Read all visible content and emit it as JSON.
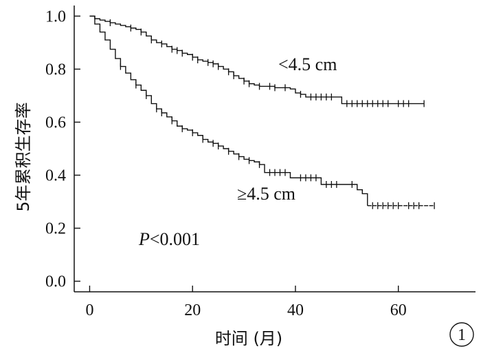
{
  "chart_data": {
    "type": "line",
    "subtype": "kaplan-meier",
    "title": "",
    "xlabel": "时间 (月)",
    "ylabel": "5年累积生存率",
    "xlim": [
      -3,
      75
    ],
    "ylim": [
      -0.04,
      1.04
    ],
    "xticks": [
      0,
      20,
      40,
      60
    ],
    "yticks": [
      0.0,
      0.2,
      0.4,
      0.6,
      0.8,
      1.0
    ],
    "xtick_labels": [
      "0",
      "20",
      "40",
      "60"
    ],
    "ytick_labels": [
      "0.0",
      "0.2",
      "0.4",
      "0.6",
      "0.8",
      "1.0"
    ],
    "grid": false,
    "legend": "none",
    "annotation": {
      "prefix": "P",
      "rest": "<0.001"
    },
    "figure_label": "1",
    "series": [
      {
        "name": "<4.5 cm",
        "dashed": false,
        "x": [
          0,
          1,
          2,
          3,
          4,
          5,
          6,
          7,
          8,
          9,
          10,
          11,
          12,
          13,
          14,
          15,
          16,
          17,
          18,
          19,
          20,
          21,
          22,
          23,
          24,
          25,
          26,
          27,
          28,
          29,
          30,
          31,
          32,
          33,
          34,
          35,
          36,
          37,
          38,
          39,
          40,
          41,
          42,
          43,
          44,
          45,
          46,
          47,
          48,
          49,
          50,
          51,
          52,
          53,
          54,
          55,
          56,
          57,
          58,
          59,
          60,
          61,
          62,
          63,
          64,
          65
        ],
        "y": [
          1.0,
          0.99,
          0.985,
          0.98,
          0.975,
          0.97,
          0.965,
          0.96,
          0.955,
          0.95,
          0.94,
          0.925,
          0.91,
          0.9,
          0.895,
          0.885,
          0.875,
          0.87,
          0.86,
          0.855,
          0.845,
          0.835,
          0.83,
          0.825,
          0.82,
          0.81,
          0.8,
          0.79,
          0.775,
          0.765,
          0.755,
          0.745,
          0.74,
          0.735,
          0.735,
          0.735,
          0.73,
          0.73,
          0.73,
          0.725,
          0.71,
          0.705,
          0.695,
          0.695,
          0.695,
          0.695,
          0.695,
          0.695,
          0.695,
          0.67,
          0.67,
          0.67,
          0.67,
          0.67,
          0.67,
          0.67,
          0.67,
          0.67,
          0.67,
          0.67,
          0.67,
          0.67,
          0.67,
          0.67,
          0.67,
          0.67
        ],
        "censor_x": [
          4,
          8,
          10,
          12,
          14,
          16,
          17,
          18,
          20,
          21,
          23,
          24,
          25,
          27,
          28,
          30,
          31,
          33,
          35,
          36,
          38,
          41,
          43,
          44,
          45,
          46,
          47,
          50,
          51,
          52,
          53,
          54,
          55,
          56,
          57,
          58,
          60,
          61,
          62,
          65
        ]
      },
      {
        "name": "≥4.5 cm",
        "dashed_from_x": 54,
        "x": [
          0,
          1,
          2,
          3,
          4,
          5,
          6,
          7,
          8,
          9,
          10,
          11,
          12,
          13,
          14,
          15,
          16,
          17,
          18,
          19,
          20,
          21,
          22,
          23,
          24,
          25,
          26,
          27,
          28,
          29,
          30,
          31,
          32,
          33,
          34,
          35,
          36,
          37,
          38,
          39,
          40,
          41,
          42,
          43,
          44,
          45,
          46,
          47,
          48,
          49,
          50,
          51,
          52,
          53,
          54,
          55,
          56,
          57,
          58,
          59,
          60,
          61,
          62,
          63,
          64,
          65,
          66,
          67
        ],
        "y": [
          1.0,
          0.97,
          0.94,
          0.91,
          0.875,
          0.84,
          0.81,
          0.785,
          0.76,
          0.74,
          0.72,
          0.7,
          0.67,
          0.65,
          0.635,
          0.62,
          0.605,
          0.585,
          0.575,
          0.57,
          0.56,
          0.55,
          0.535,
          0.525,
          0.52,
          0.51,
          0.5,
          0.49,
          0.48,
          0.47,
          0.46,
          0.455,
          0.45,
          0.44,
          0.41,
          0.41,
          0.41,
          0.41,
          0.41,
          0.39,
          0.39,
          0.39,
          0.39,
          0.39,
          0.39,
          0.365,
          0.365,
          0.365,
          0.365,
          0.365,
          0.365,
          0.365,
          0.345,
          0.33,
          0.285,
          0.285,
          0.285,
          0.285,
          0.285,
          0.285,
          0.285,
          0.285,
          0.285,
          0.285,
          0.285,
          0.285,
          0.285,
          0.285
        ],
        "censor_x": [
          6,
          9,
          11,
          13,
          14,
          16,
          18,
          20,
          22,
          24,
          25,
          27,
          29,
          31,
          33,
          35,
          36,
          37,
          38,
          41,
          42,
          43,
          44,
          46,
          47,
          48,
          51,
          55,
          56,
          57,
          58,
          59,
          60,
          62,
          63,
          64,
          67
        ]
      }
    ]
  }
}
